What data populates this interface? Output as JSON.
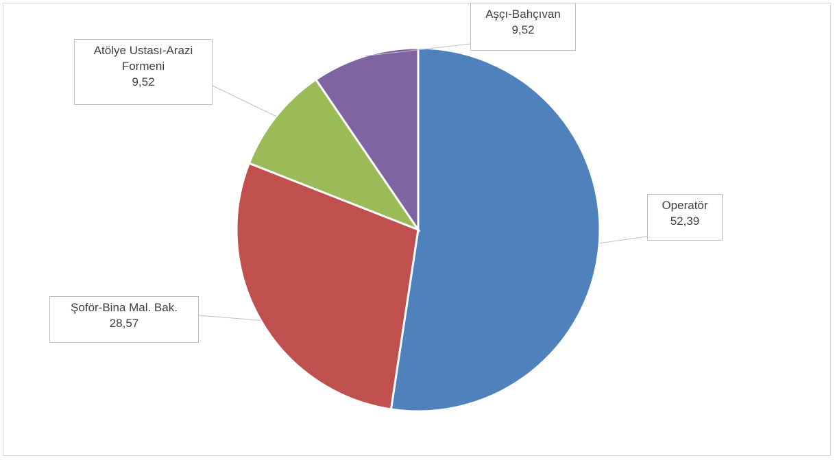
{
  "chart_data": {
    "type": "pie",
    "categories": [
      "Operatör",
      "Şoför-Bina Mal. Bak.",
      "Atölye Ustası-Arazi Formeni",
      "Aşçı-Bahçıvan"
    ],
    "values": [
      52.39,
      28.57,
      9.52,
      9.52
    ],
    "value_labels": [
      "52,39",
      "28,57",
      "9,52",
      "9,52"
    ],
    "colors": [
      "#4f81bd",
      "#c0504d",
      "#9bbb59",
      "#8064a2"
    ]
  }
}
